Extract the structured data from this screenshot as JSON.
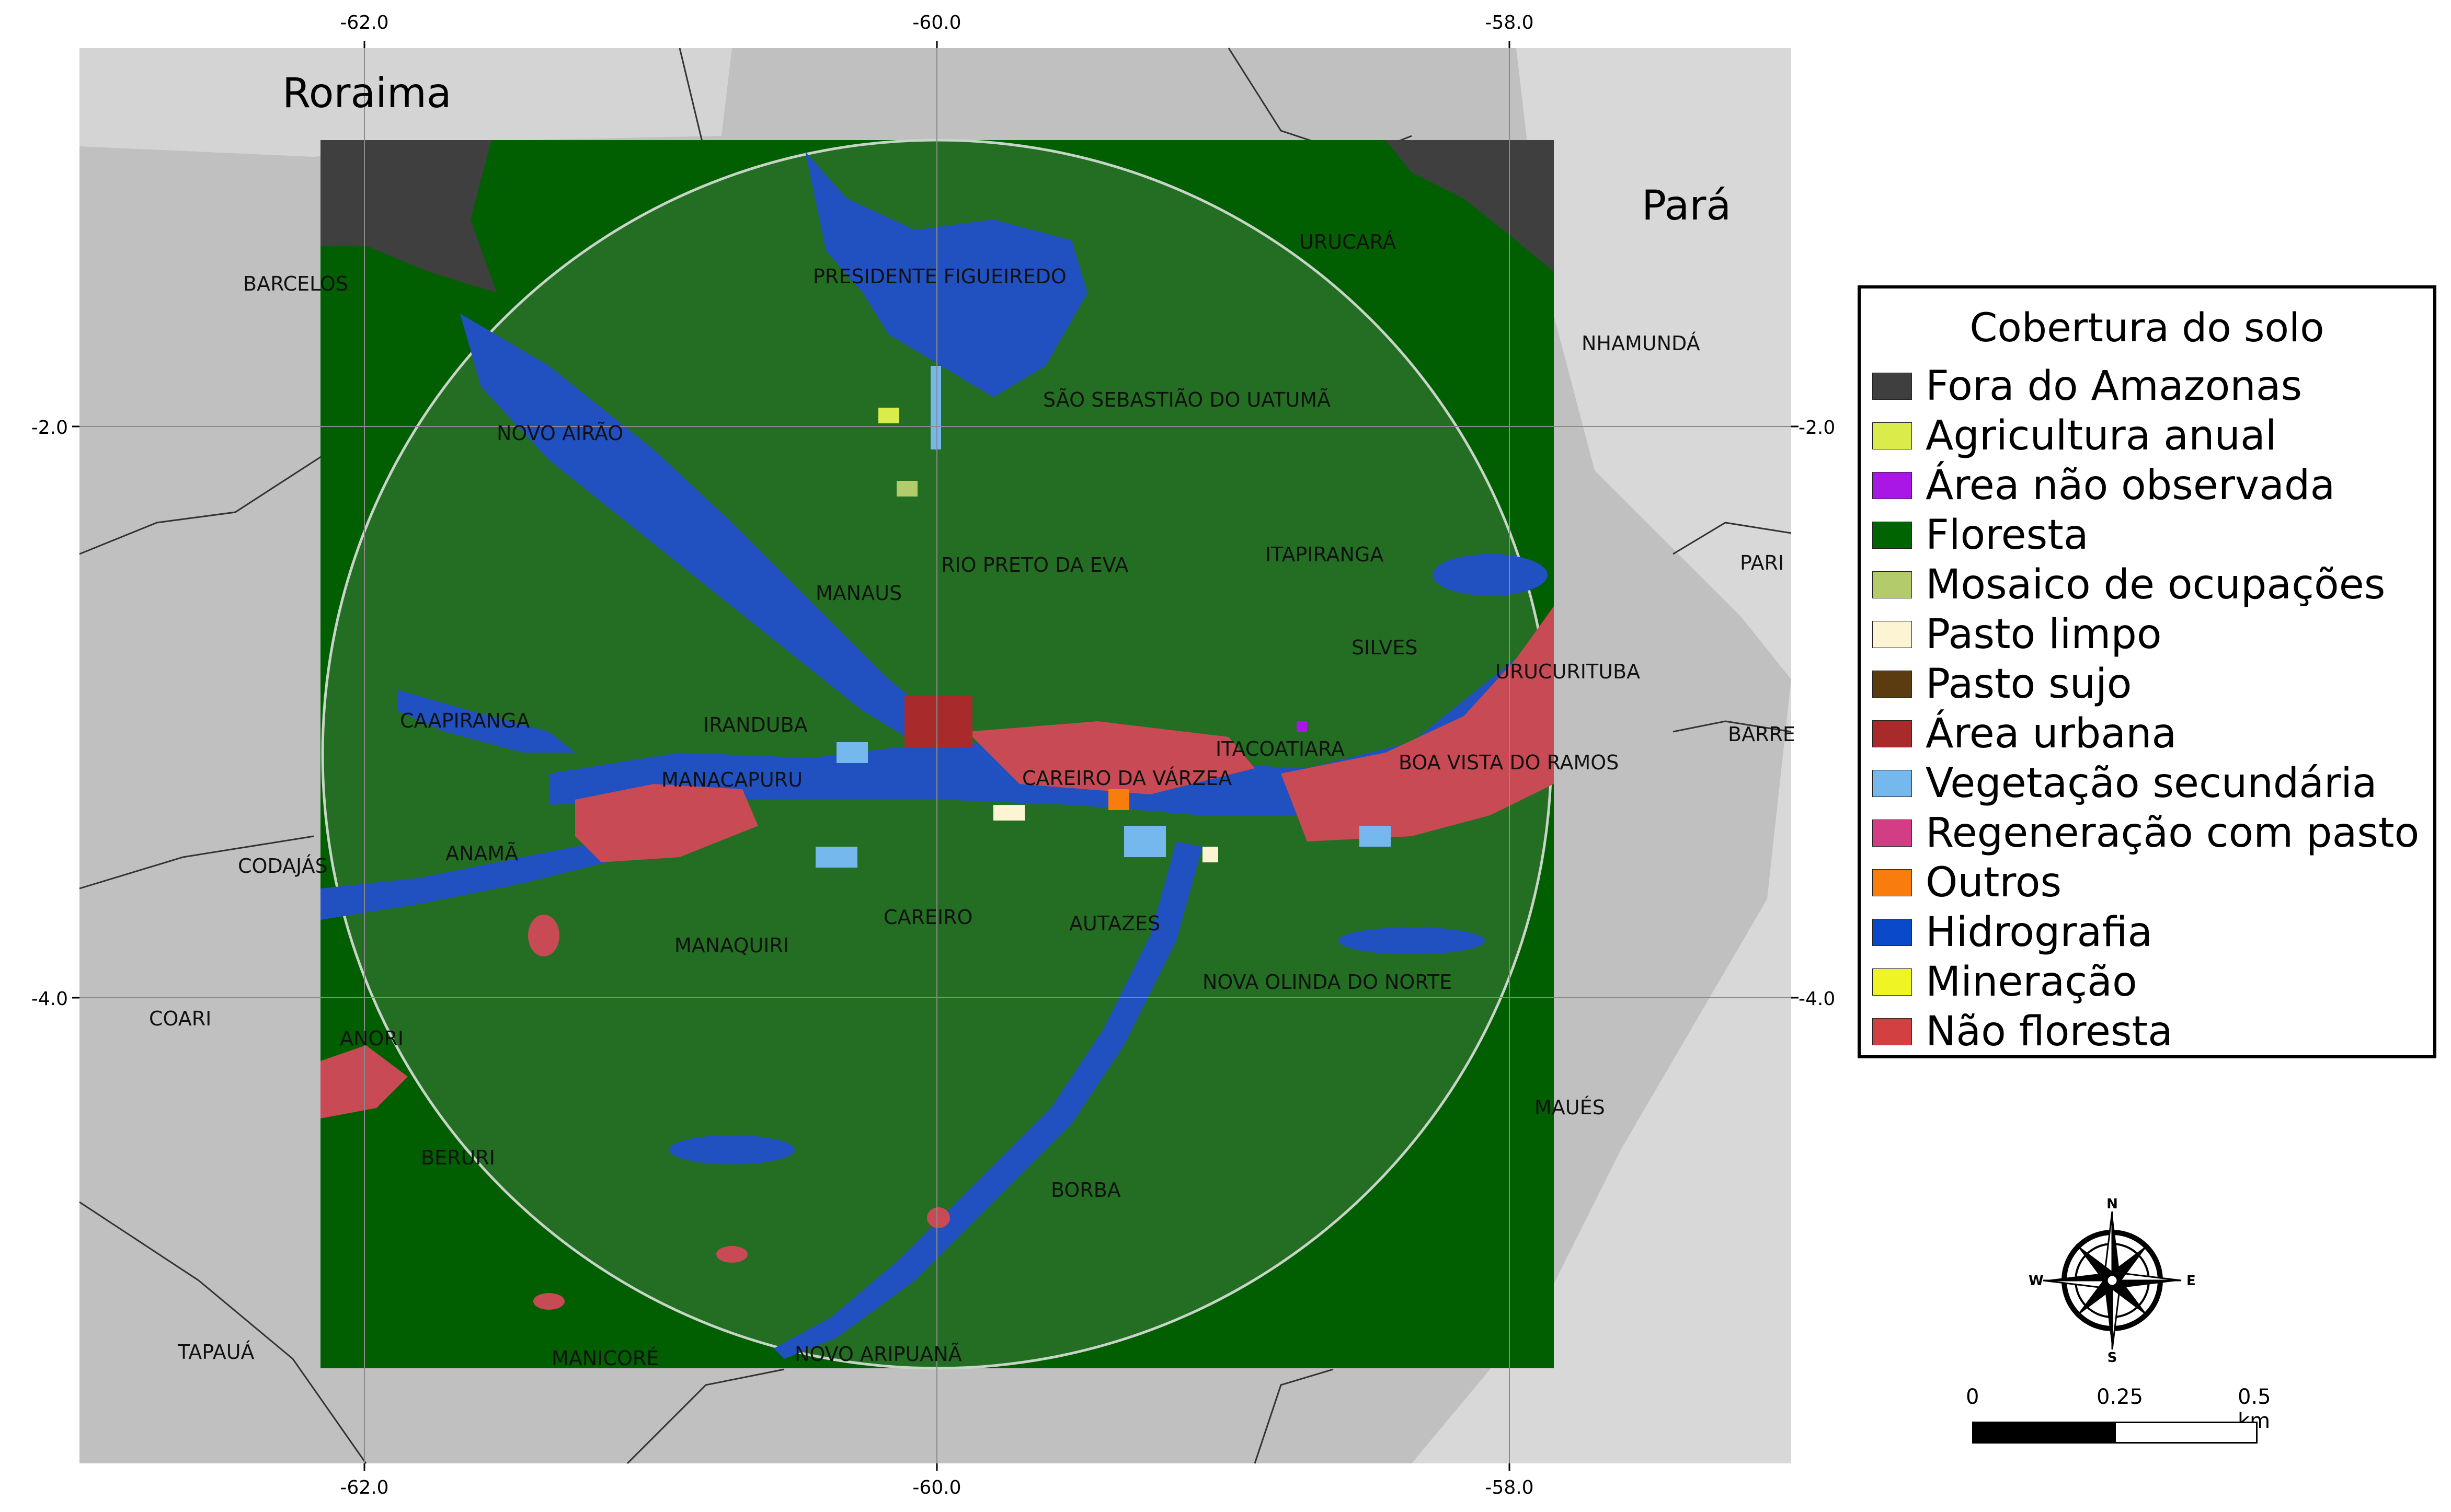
{
  "axes": {
    "x_ticks": [
      "-62.0",
      "-60.0",
      "-58.0"
    ],
    "y_ticks": [
      "-2.0",
      "-4.0"
    ]
  },
  "states": {
    "north_west": "Roraima",
    "north_east": "Pará"
  },
  "places": [
    "BARCELOS",
    "NOVO AIRÃO",
    "PRESIDENTE FIGUEIREDO",
    "SÃO SEBASTIÃO DO UATUMÃ",
    "URUCARÁ",
    "NHAMUNDÁ",
    "MANAUS",
    "RIO PRETO DA EVA",
    "ITAPIRANGA",
    "SILVES",
    "URUCURITUBA",
    "CAAPIRANGA",
    "IRANDUBA",
    "MANACAPURU",
    "CAREIRO DA VÁRZEA",
    "ITACOATIARA",
    "BOA VISTA DO RAMOS",
    "CODAJÁS",
    "ANAMÃ",
    "MANAQUIRI",
    "CAREIRO",
    "AUTAZES",
    "NOVA OLINDA DO NORTE",
    "COARI",
    "ANORI",
    "BERURI",
    "MAUÉS",
    "BORBA",
    "TAPAUÁ",
    "MANICORÉ",
    "NOVO ARIPUANÃ",
    "PARI",
    "BARRE"
  ],
  "legend": {
    "title": "Cobertura do solo",
    "items": [
      {
        "label": "Fora do Amazonas",
        "color": "#3f3f3f"
      },
      {
        "label": "Agricultura anual",
        "color": "#d9ec4a"
      },
      {
        "label": "Área não observada",
        "color": "#a917e6"
      },
      {
        "label": "Floresta",
        "color": "#006400"
      },
      {
        "label": "Mosaico de ocupações",
        "color": "#b3cb6b"
      },
      {
        "label": "Pasto limpo",
        "color": "#fdf4d4"
      },
      {
        "label": "Pasto sujo",
        "color": "#5a3c10"
      },
      {
        "label": "Área urbana",
        "color": "#a82a2a"
      },
      {
        "label": "Vegetação secundária",
        "color": "#74b8ee"
      },
      {
        "label": "Regeneração com pasto",
        "color": "#d33d86"
      },
      {
        "label": "Outros",
        "color": "#f97d0c"
      },
      {
        "label": "Hidrografia",
        "color": "#0a49c9"
      },
      {
        "label": "Mineração",
        "color": "#eef523"
      },
      {
        "label": "Não floresta",
        "color": "#d24041"
      }
    ]
  },
  "compass": {
    "n": "N",
    "s": "S",
    "e": "E",
    "w": "W"
  },
  "scale": {
    "labels": [
      "0",
      "0.25",
      "0.5 km"
    ]
  },
  "colors": {
    "background_land": "#bdbdbd",
    "outside_frame": "#dcdcdc",
    "forest": "#236e23",
    "forest_outer": "#015f01",
    "water": "#2150c0",
    "urban": "#c84a55"
  }
}
